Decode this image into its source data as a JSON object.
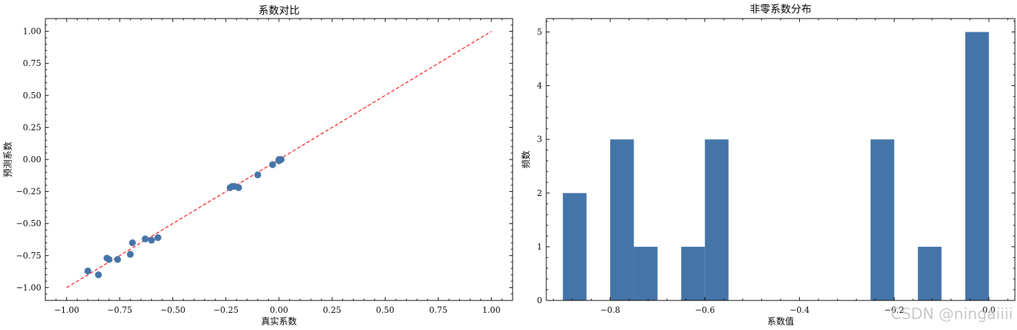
{
  "colors": {
    "marker": "#4575a8",
    "bar": "#4575a8",
    "reference_line": "#ff0000",
    "watermark": "#c8c8c8"
  },
  "watermark": "CSDN @ningaiiii",
  "chart_data": [
    {
      "type": "scatter",
      "title": "系数对比",
      "xlabel": "真实系数",
      "ylabel": "预测系数",
      "xlim": [
        -1.1,
        1.1
      ],
      "ylim": [
        -1.1,
        1.1
      ],
      "xticks": [
        "−1.00",
        "−0.75",
        "−0.50",
        "−0.25",
        "0.00",
        "0.25",
        "0.50",
        "0.75",
        "1.00"
      ],
      "yticks": [
        "−1.00",
        "−0.75",
        "−0.50",
        "−0.25",
        "0.00",
        "0.25",
        "0.50",
        "0.75",
        "1.00"
      ],
      "reference_line": {
        "x": [
          -1.0,
          1.0
        ],
        "y": [
          -1.0,
          1.0
        ],
        "style": "dashed"
      },
      "points": [
        {
          "x": -0.9,
          "y": -0.87
        },
        {
          "x": -0.85,
          "y": -0.9
        },
        {
          "x": -0.81,
          "y": -0.77
        },
        {
          "x": -0.8,
          "y": -0.78
        },
        {
          "x": -0.76,
          "y": -0.78
        },
        {
          "x": -0.7,
          "y": -0.74
        },
        {
          "x": -0.69,
          "y": -0.65
        },
        {
          "x": -0.63,
          "y": -0.62
        },
        {
          "x": -0.6,
          "y": -0.63
        },
        {
          "x": -0.57,
          "y": -0.61
        },
        {
          "x": -0.23,
          "y": -0.22
        },
        {
          "x": -0.22,
          "y": -0.21
        },
        {
          "x": -0.21,
          "y": -0.21
        },
        {
          "x": -0.19,
          "y": -0.22
        },
        {
          "x": -0.1,
          "y": -0.12
        },
        {
          "x": -0.03,
          "y": -0.04
        },
        {
          "x": 0.0,
          "y": 0.0
        },
        {
          "x": 0.0,
          "y": -0.01
        },
        {
          "x": 0.01,
          "y": 0.0
        }
      ]
    },
    {
      "type": "bar",
      "subtype": "histogram",
      "title": "非零系数分布",
      "xlabel": "系数值",
      "ylabel": "频数",
      "xlim": [
        -0.935,
        0.055
      ],
      "ylim": [
        0,
        5.25
      ],
      "xticks": [
        {
          "value": -0.8,
          "label": "−0.8"
        },
        {
          "value": -0.6,
          "label": "−0.6"
        },
        {
          "value": -0.4,
          "label": "−0.4"
        },
        {
          "value": -0.2,
          "label": "−0.2"
        },
        {
          "value": 0.0,
          "label": "0.0"
        }
      ],
      "yticks": [
        "0",
        "1",
        "2",
        "3",
        "4",
        "5"
      ],
      "bins": [
        {
          "x0": -0.9,
          "x1": -0.85,
          "count": 2
        },
        {
          "x0": -0.85,
          "x1": -0.8,
          "count": 0
        },
        {
          "x0": -0.8,
          "x1": -0.75,
          "count": 3
        },
        {
          "x0": -0.75,
          "x1": -0.7,
          "count": 1
        },
        {
          "x0": -0.7,
          "x1": -0.65,
          "count": 0
        },
        {
          "x0": -0.65,
          "x1": -0.6,
          "count": 1
        },
        {
          "x0": -0.6,
          "x1": -0.55,
          "count": 3
        },
        {
          "x0": -0.55,
          "x1": -0.5,
          "count": 0
        },
        {
          "x0": -0.5,
          "x1": -0.45,
          "count": 0
        },
        {
          "x0": -0.45,
          "x1": -0.4,
          "count": 0
        },
        {
          "x0": -0.4,
          "x1": -0.35,
          "count": 0
        },
        {
          "x0": -0.35,
          "x1": -0.3,
          "count": 0
        },
        {
          "x0": -0.3,
          "x1": -0.25,
          "count": 0
        },
        {
          "x0": -0.25,
          "x1": -0.2,
          "count": 3
        },
        {
          "x0": -0.2,
          "x1": -0.15,
          "count": 0
        },
        {
          "x0": -0.15,
          "x1": -0.1,
          "count": 1
        },
        {
          "x0": -0.1,
          "x1": -0.05,
          "count": 0
        },
        {
          "x0": -0.05,
          "x1": 0.0,
          "count": 5
        }
      ]
    }
  ]
}
